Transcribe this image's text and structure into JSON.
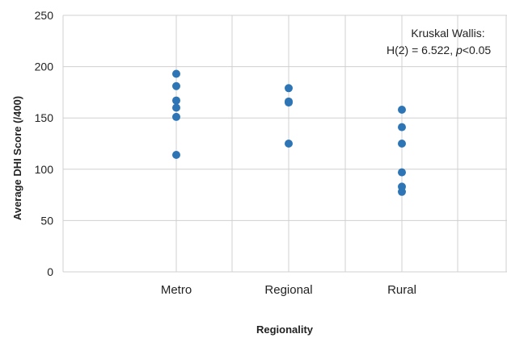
{
  "chart_data": {
    "type": "scatter",
    "title": "",
    "xlabel": "Regionality",
    "ylabel": "Average DHI Score (/400)",
    "categories": [
      "Metro",
      "Regional",
      "Rural"
    ],
    "ylim": [
      0,
      250
    ],
    "yticks": [
      0,
      50,
      100,
      150,
      200,
      250
    ],
    "grid": true,
    "series": [
      {
        "color": "#2E75B6",
        "points": [
          {
            "x": "Metro",
            "y": 193
          },
          {
            "x": "Metro",
            "y": 181
          },
          {
            "x": "Metro",
            "y": 167
          },
          {
            "x": "Metro",
            "y": 160
          },
          {
            "x": "Metro",
            "y": 151
          },
          {
            "x": "Metro",
            "y": 114
          },
          {
            "x": "Regional",
            "y": 179
          },
          {
            "x": "Regional",
            "y": 166
          },
          {
            "x": "Regional",
            "y": 165
          },
          {
            "x": "Regional",
            "y": 125
          },
          {
            "x": "Rural",
            "y": 158
          },
          {
            "x": "Rural",
            "y": 141
          },
          {
            "x": "Rural",
            "y": 125
          },
          {
            "x": "Rural",
            "y": 97
          },
          {
            "x": "Rural",
            "y": 83
          },
          {
            "x": "Rural",
            "y": 78
          }
        ]
      }
    ],
    "annotation": {
      "line1": "Kruskal Wallis:",
      "line2_prefix": "H(2) = 6.522, ",
      "line2_italic": "p",
      "line2_suffix": "<0.05"
    }
  }
}
